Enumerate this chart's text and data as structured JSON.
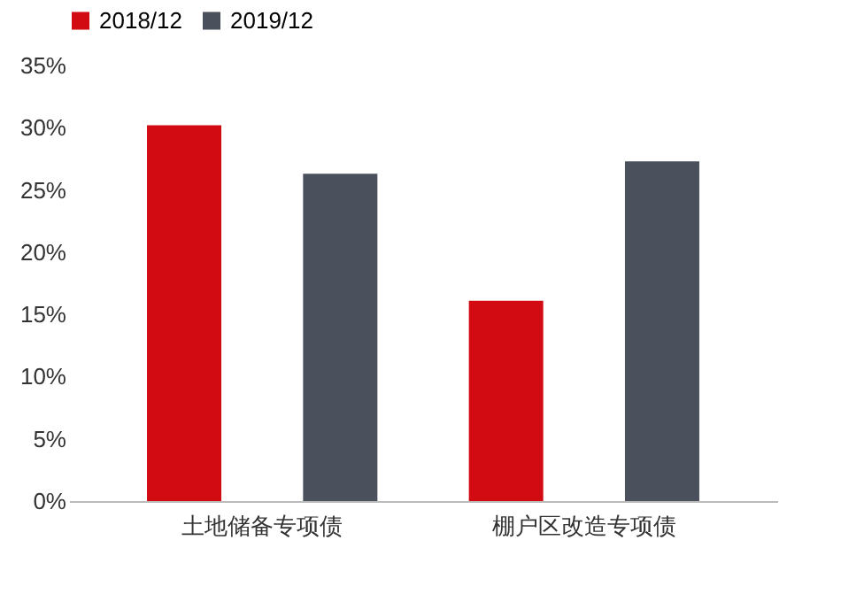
{
  "chart_data": {
    "type": "bar",
    "categories": [
      "土地储备专项债",
      "棚户区改造专项债"
    ],
    "series": [
      {
        "name": "2018/12",
        "color": "#d20a11",
        "values": [
          30.2,
          16.1
        ]
      },
      {
        "name": "2019/12",
        "color": "#4b515c",
        "values": [
          26.3,
          27.3
        ]
      }
    ],
    "ylim": [
      0,
      35
    ],
    "yticks": [
      {
        "value": 0,
        "label": "0%"
      },
      {
        "value": 5,
        "label": "5%"
      },
      {
        "value": 10,
        "label": "10%"
      },
      {
        "value": 15,
        "label": "15%"
      },
      {
        "value": 20,
        "label": "20%"
      },
      {
        "value": 25,
        "label": "25%"
      },
      {
        "value": 30,
        "label": "30%"
      },
      {
        "value": 35,
        "label": "35%"
      }
    ],
    "grid": false,
    "legend": "top"
  }
}
